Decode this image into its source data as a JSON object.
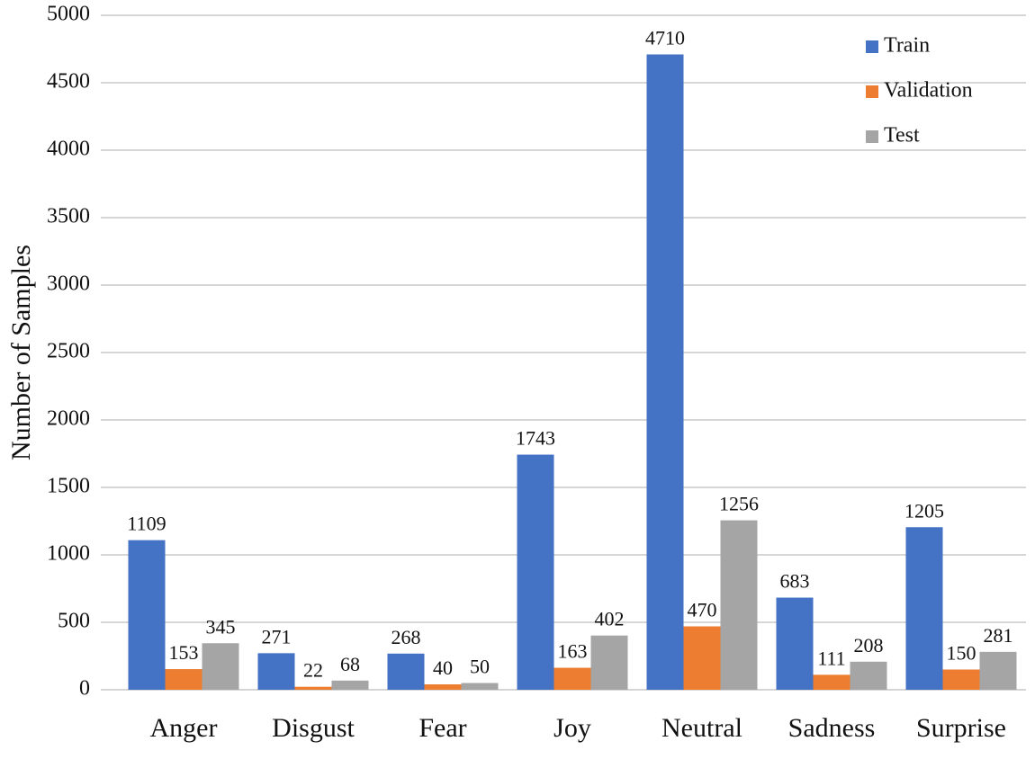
{
  "chart_data": {
    "type": "grouped_bar",
    "y_label": "Number of Samples",
    "categories": [
      "Anger",
      "Disgust",
      "Fear",
      "Joy",
      "Neutral",
      "Sadness",
      "Surprise"
    ],
    "series": [
      {
        "name": "Train",
        "color": "#4472c4",
        "values": [
          1109,
          271,
          268,
          1743,
          4710,
          683,
          1205
        ]
      },
      {
        "name": "Validation",
        "color": "#ed7d31",
        "values": [
          153,
          22,
          40,
          163,
          470,
          111,
          150
        ]
      },
      {
        "name": "Test",
        "color": "#a5a5a5",
        "values": [
          345,
          68,
          50,
          402,
          1256,
          208,
          281
        ]
      }
    ],
    "ylim": [
      0,
      5000
    ],
    "yticks": [
      0,
      500,
      1000,
      1500,
      2000,
      2500,
      3000,
      3500,
      4000,
      4500,
      5000
    ],
    "grid": true,
    "legend": "upper-right"
  }
}
